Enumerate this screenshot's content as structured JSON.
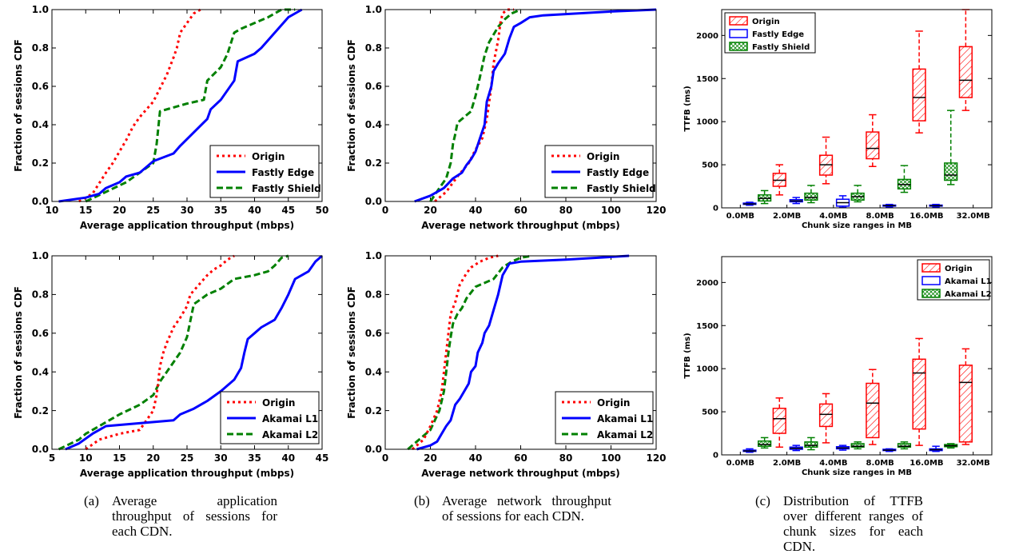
{
  "chart_data": [
    {
      "type": "line",
      "xlabel": "Average application throughput (mbps)",
      "ylabel": "Fraction of sessions CDF",
      "xlim": [
        10,
        50
      ],
      "ylim": [
        0,
        1.0
      ],
      "xticks": [
        "10",
        "15",
        "20",
        "25",
        "30",
        "35",
        "40",
        "45",
        "50"
      ],
      "yticks": [
        "0.0",
        "0.2",
        "0.4",
        "0.6",
        "0.8",
        "1.0"
      ],
      "legend": "lower-right",
      "series": [
        {
          "name": "Origin",
          "style": "dotted",
          "color": "#ff0000",
          "x": [
            14,
            16,
            18,
            19,
            20,
            21,
            22,
            23,
            24,
            25,
            26,
            27,
            28,
            28.5,
            29,
            30,
            31,
            32
          ],
          "y": [
            0,
            0.04,
            0.15,
            0.2,
            0.26,
            0.32,
            0.39,
            0.44,
            0.48,
            0.52,
            0.59,
            0.66,
            0.75,
            0.8,
            0.88,
            0.93,
            0.98,
            1.0
          ]
        },
        {
          "name": "Fastly Edge",
          "style": "solid",
          "color": "#0000ff",
          "x": [
            11,
            15,
            17,
            18,
            20,
            21,
            23,
            25,
            28,
            29,
            31,
            33,
            33.5,
            35,
            37,
            37.5,
            40,
            41,
            42,
            44,
            45,
            47
          ],
          "y": [
            0,
            0.02,
            0.04,
            0.07,
            0.1,
            0.13,
            0.15,
            0.21,
            0.25,
            0.29,
            0.36,
            0.43,
            0.48,
            0.53,
            0.63,
            0.73,
            0.77,
            0.8,
            0.84,
            0.92,
            0.96,
            1.0
          ]
        },
        {
          "name": "Fastly Shield",
          "style": "dashed",
          "color": "#008000",
          "x": [
            15,
            18,
            21,
            23,
            25,
            25.5,
            26,
            28,
            30,
            32.5,
            33,
            35,
            36,
            37,
            38,
            40,
            42,
            44,
            46
          ],
          "y": [
            0,
            0.05,
            0.1,
            0.15,
            0.2,
            0.3,
            0.47,
            0.49,
            0.51,
            0.53,
            0.63,
            0.7,
            0.77,
            0.88,
            0.9,
            0.93,
            0.96,
            1.0,
            1.0
          ]
        }
      ]
    },
    {
      "type": "line",
      "xlabel": "Average network throughput (mbps)",
      "ylabel": "Fraction of sessions CDF",
      "xlim": [
        0,
        120
      ],
      "ylim": [
        0,
        1.0
      ],
      "xticks": [
        "0",
        "20",
        "40",
        "60",
        "80",
        "100",
        "120"
      ],
      "yticks": [
        "0.0",
        "0.2",
        "0.4",
        "0.6",
        "0.8",
        "1.0"
      ],
      "legend": "lower-right",
      "series": [
        {
          "name": "Origin",
          "style": "dotted",
          "color": "#ff0000",
          "x": [
            22,
            27,
            32,
            37,
            40,
            43,
            45,
            47,
            48,
            50,
            51,
            52,
            54,
            57
          ],
          "y": [
            0,
            0.05,
            0.13,
            0.2,
            0.27,
            0.33,
            0.43,
            0.6,
            0.72,
            0.84,
            0.93,
            0.98,
            1.0,
            1.0
          ]
        },
        {
          "name": "Fastly Edge",
          "style": "solid",
          "color": "#0000ff",
          "x": [
            13,
            20,
            26,
            30,
            34,
            36,
            38,
            40,
            42,
            44,
            45,
            46,
            47,
            48,
            50,
            53,
            55,
            57,
            60,
            64,
            70,
            100,
            120
          ],
          "y": [
            0,
            0.03,
            0.07,
            0.12,
            0.15,
            0.19,
            0.22,
            0.26,
            0.33,
            0.4,
            0.52,
            0.56,
            0.6,
            0.68,
            0.72,
            0.77,
            0.85,
            0.91,
            0.93,
            0.96,
            0.97,
            0.99,
            1.0
          ]
        },
        {
          "name": "Fastly Shield",
          "style": "dashed",
          "color": "#008000",
          "x": [
            20,
            24,
            27,
            29,
            30,
            31,
            32,
            35,
            38,
            40,
            42,
            44,
            46,
            48,
            50,
            53,
            56,
            60
          ],
          "y": [
            0,
            0.07,
            0.12,
            0.2,
            0.3,
            0.35,
            0.41,
            0.44,
            0.47,
            0.55,
            0.65,
            0.76,
            0.83,
            0.87,
            0.91,
            0.95,
            0.98,
            1.0
          ]
        }
      ]
    },
    {
      "type": "box",
      "xlabel": "Chunk size ranges in MB",
      "ylabel": "TTFB (ms)",
      "ylim": [
        0,
        2300
      ],
      "yticks": [
        "0",
        "500",
        "1000",
        "1500",
        "2000"
      ],
      "xticks": [
        "0.0MB",
        "2.0MB",
        "4.0MB",
        "8.0MB",
        "16.0MB",
        "32.0MB"
      ],
      "legend": "upper-left",
      "series": [
        {
          "name": "Fastly Edge",
          "color": "#0000ff",
          "fill": "none",
          "boxes": [
            [
              30,
              40,
              45,
              55,
              65
            ],
            [
              50,
              70,
              80,
              95,
              120
            ],
            [
              5,
              20,
              60,
              100,
              140
            ],
            [
              10,
              20,
              25,
              32,
              40
            ],
            [
              10,
              20,
              25,
              32,
              40
            ]
          ]
        },
        {
          "name": "Fastly Shield",
          "color": "#008000",
          "fill": "cross",
          "boxes": [
            [
              50,
              80,
              110,
              150,
              200
            ],
            [
              60,
              90,
              120,
              170,
              260
            ],
            [
              70,
              90,
              130,
              170,
              260
            ],
            [
              180,
              220,
              270,
              330,
              490
            ],
            [
              270,
              320,
              380,
              520,
              1130
            ]
          ]
        },
        {
          "name": "Origin",
          "color": "#ff0000",
          "fill": "hatch",
          "boxes": [
            [
              150,
              250,
              320,
              400,
              500
            ],
            [
              280,
              380,
              500,
              610,
              820
            ],
            [
              480,
              570,
              690,
              880,
              1080
            ],
            [
              870,
              1010,
              1280,
              1610,
              2050
            ],
            [
              1130,
              1280,
              1480,
              1870,
              2300
            ]
          ]
        }
      ]
    },
    {
      "type": "line",
      "xlabel": "Average application throughput (mbps)",
      "ylabel": "Fraction of sessions CDF",
      "xlim": [
        5,
        45
      ],
      "ylim": [
        0,
        1.0
      ],
      "xticks": [
        "5",
        "10",
        "15",
        "20",
        "25",
        "30",
        "35",
        "40",
        "45"
      ],
      "yticks": [
        "0.0",
        "0.2",
        "0.4",
        "0.6",
        "0.8",
        "1.0"
      ],
      "legend": "lower-right",
      "series": [
        {
          "name": "Origin",
          "style": "dotted",
          "color": "#ff0000",
          "x": [
            10,
            12,
            15,
            18,
            19,
            20,
            20.5,
            21,
            21.5,
            22,
            23,
            24,
            25,
            25.5,
            27,
            28,
            29,
            30,
            31,
            32
          ],
          "y": [
            0,
            0.05,
            0.08,
            0.1,
            0.15,
            0.2,
            0.28,
            0.43,
            0.5,
            0.55,
            0.63,
            0.68,
            0.74,
            0.8,
            0.86,
            0.9,
            0.93,
            0.95,
            0.98,
            1.0
          ]
        },
        {
          "name": "Akamai L1",
          "style": "solid",
          "color": "#0000ff",
          "x": [
            7,
            9,
            11,
            13,
            23,
            24,
            26,
            28,
            30,
            32,
            33,
            33.5,
            34,
            35,
            36,
            38,
            39,
            40,
            41,
            43,
            44,
            45
          ],
          "y": [
            0,
            0.03,
            0.08,
            0.12,
            0.15,
            0.18,
            0.21,
            0.25,
            0.3,
            0.36,
            0.42,
            0.5,
            0.57,
            0.6,
            0.63,
            0.67,
            0.73,
            0.8,
            0.88,
            0.92,
            0.97,
            1.0
          ]
        },
        {
          "name": "Akamai L2",
          "style": "dashed",
          "color": "#008000",
          "x": [
            6,
            9,
            10,
            12,
            15,
            18,
            20,
            21,
            22,
            23,
            24,
            25,
            26,
            28,
            30,
            32,
            35,
            37,
            38,
            39,
            40
          ],
          "y": [
            0,
            0.05,
            0.08,
            0.12,
            0.18,
            0.23,
            0.28,
            0.35,
            0.4,
            0.45,
            0.5,
            0.58,
            0.75,
            0.8,
            0.83,
            0.88,
            0.9,
            0.92,
            0.95,
            0.99,
            1.0
          ]
        }
      ]
    },
    {
      "type": "line",
      "xlabel": "Average network throughput (mbps)",
      "ylabel": "Fraction of sessions CDF",
      "xlim": [
        0,
        120
      ],
      "ylim": [
        0,
        1.0
      ],
      "xticks": [
        "0",
        "20",
        "40",
        "60",
        "80",
        "100",
        "120"
      ],
      "yticks": [
        "0.0",
        "0.2",
        "0.4",
        "0.6",
        "0.8",
        "1.0"
      ],
      "legend": "lower-right",
      "series": [
        {
          "name": "Origin",
          "style": "dotted",
          "color": "#ff0000",
          "x": [
            12,
            17,
            20,
            23,
            25,
            26,
            27,
            28,
            29,
            31,
            33,
            36,
            38,
            42,
            46,
            50
          ],
          "y": [
            0,
            0.05,
            0.12,
            0.2,
            0.3,
            0.4,
            0.5,
            0.6,
            0.7,
            0.76,
            0.85,
            0.91,
            0.94,
            0.97,
            0.99,
            1.0
          ]
        },
        {
          "name": "Akamai L1",
          "style": "solid",
          "color": "#0000ff",
          "x": [
            14,
            20,
            23,
            25,
            27,
            29,
            31,
            33,
            35,
            37,
            38,
            40,
            41,
            43,
            44,
            46,
            48,
            50,
            52,
            55,
            60,
            80,
            108
          ],
          "y": [
            0,
            0.02,
            0.04,
            0.08,
            0.12,
            0.15,
            0.23,
            0.26,
            0.3,
            0.34,
            0.4,
            0.43,
            0.5,
            0.55,
            0.6,
            0.64,
            0.72,
            0.8,
            0.9,
            0.96,
            0.97,
            0.98,
            1.0
          ]
        },
        {
          "name": "Akamai L2",
          "style": "dashed",
          "color": "#008000",
          "x": [
            10,
            15,
            20,
            22,
            24,
            26,
            27,
            28,
            29,
            30,
            32,
            34,
            36,
            40,
            44,
            48,
            52,
            56,
            60,
            65
          ],
          "y": [
            0,
            0.05,
            0.1,
            0.15,
            0.2,
            0.3,
            0.4,
            0.5,
            0.58,
            0.65,
            0.7,
            0.73,
            0.78,
            0.84,
            0.86,
            0.88,
            0.94,
            0.97,
            0.99,
            1.0
          ]
        }
      ]
    },
    {
      "type": "box",
      "xlabel": "Chunk size ranges in MB",
      "ylabel": "TTFB (ms)",
      "ylim": [
        0,
        2300
      ],
      "yticks": [
        "0",
        "500",
        "1000",
        "1500",
        "2000"
      ],
      "xticks": [
        "0.0MB",
        "2.0MB",
        "4.0MB",
        "8.0MB",
        "16.0MB",
        "32.0MB"
      ],
      "legend": "upper-right",
      "series": [
        {
          "name": "Akamai L1",
          "color": "#0000ff",
          "fill": "none",
          "boxes": [
            [
              30,
              40,
              45,
              55,
              70
            ],
            [
              50,
              65,
              75,
              90,
              110
            ],
            [
              55,
              70,
              80,
              95,
              110
            ],
            [
              40,
              50,
              55,
              65,
              70
            ],
            [
              40,
              50,
              60,
              70,
              100
            ]
          ]
        },
        {
          "name": "Akamai L2",
          "color": "#008000",
          "fill": "cross",
          "boxes": [
            [
              80,
              100,
              120,
              160,
              200
            ],
            [
              60,
              90,
              110,
              150,
              200
            ],
            [
              70,
              90,
              100,
              130,
              150
            ],
            [
              70,
              90,
              100,
              130,
              150
            ],
            [
              80,
              95,
              105,
              120,
              130
            ]
          ]
        },
        {
          "name": "Origin",
          "color": "#ff0000",
          "fill": "hatch",
          "boxes": [
            [
              90,
              250,
              420,
              540,
              660
            ],
            [
              140,
              330,
              470,
              590,
              710
            ],
            [
              120,
              200,
              600,
              830,
              990
            ],
            [
              110,
              300,
              950,
              1110,
              1350
            ],
            [
              120,
              150,
              840,
              1040,
              1230
            ]
          ]
        }
      ]
    }
  ],
  "captions": [
    {
      "label": "(a)",
      "text": "Average application throughput of sessions for each CDN."
    },
    {
      "label": "(b)",
      "text": "Average network throughput of sessions for each CDN."
    },
    {
      "label": "(c)",
      "text": "Distribution of TTFB over different ranges of chunk sizes for each CDN."
    }
  ]
}
